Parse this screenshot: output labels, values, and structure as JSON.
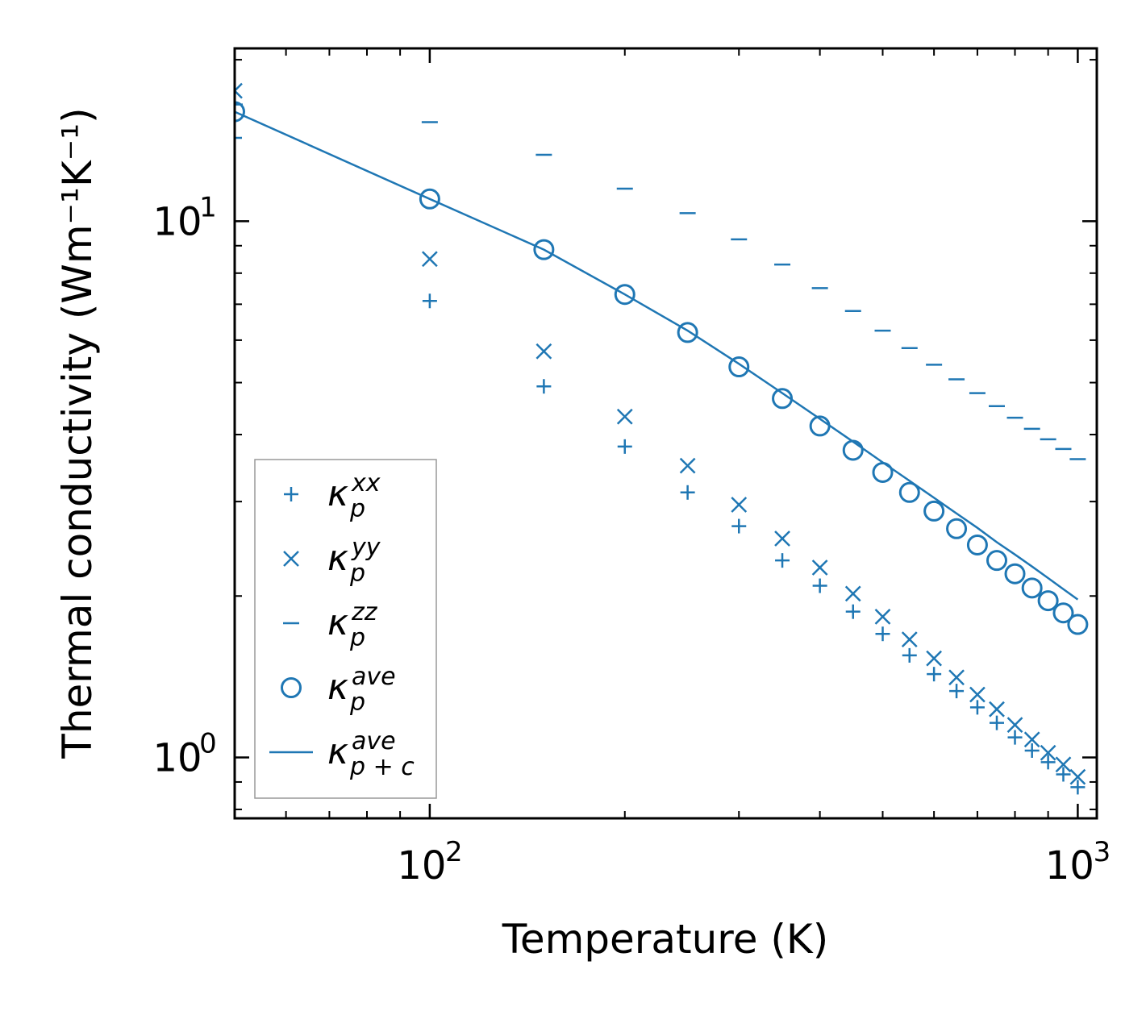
{
  "colors": {
    "series": "#1f77b4",
    "axis": "#000000",
    "legend_frame": "#999999"
  },
  "chart_data": {
    "type": "scatter",
    "xscale": "log",
    "yscale": "log",
    "xlim": [
      50,
      1070
    ],
    "ylim": [
      0.77,
      21
    ],
    "xlabel": "Temperature (K)",
    "ylabel": "Thermal conductivity (Wm⁻¹K⁻¹)",
    "xticks": [
      {
        "value": 100,
        "base": "10",
        "exp": "2"
      },
      {
        "value": 1000,
        "base": "10",
        "exp": "3"
      }
    ],
    "yticks": [
      {
        "value": 1,
        "base": "10",
        "exp": "0"
      },
      {
        "value": 10,
        "base": "10",
        "exp": "1"
      }
    ],
    "x": [
      50,
      100,
      150,
      200,
      250,
      300,
      350,
      400,
      450,
      500,
      550,
      600,
      650,
      700,
      750,
      800,
      850,
      900,
      950,
      1000
    ],
    "series": [
      {
        "name": "kappa_p_xx",
        "marker": "plus",
        "values": [
          14.3,
          7.1,
          4.92,
          3.8,
          3.12,
          2.7,
          2.33,
          2.09,
          1.87,
          1.7,
          1.55,
          1.43,
          1.33,
          1.24,
          1.16,
          1.09,
          1.03,
          0.98,
          0.93,
          0.88
        ]
      },
      {
        "name": "kappa_p_yy",
        "marker": "x",
        "values": [
          17.5,
          8.5,
          5.72,
          4.32,
          3.5,
          2.96,
          2.56,
          2.26,
          2.02,
          1.83,
          1.66,
          1.53,
          1.41,
          1.31,
          1.23,
          1.15,
          1.08,
          1.02,
          0.97,
          0.92
        ]
      },
      {
        "name": "kappa_p_zz",
        "marker": "hline",
        "values": [
          16.5,
          15.3,
          13.3,
          11.5,
          10.35,
          9.25,
          8.3,
          7.5,
          6.8,
          6.25,
          5.8,
          5.4,
          5.07,
          4.78,
          4.52,
          4.3,
          4.1,
          3.92,
          3.76,
          3.6
        ]
      },
      {
        "name": "kappa_p_ave",
        "marker": "circle",
        "values": [
          16.0,
          11.0,
          8.85,
          7.3,
          6.2,
          5.35,
          4.67,
          4.15,
          3.74,
          3.4,
          3.12,
          2.88,
          2.67,
          2.49,
          2.33,
          2.2,
          2.07,
          1.96,
          1.86,
          1.77
        ]
      },
      {
        "name": "kappa_pc_ave",
        "marker": "line",
        "values": [
          16.0,
          11.0,
          8.85,
          7.3,
          6.25,
          5.42,
          4.78,
          4.28,
          3.88,
          3.55,
          3.28,
          3.05,
          2.85,
          2.68,
          2.52,
          2.39,
          2.27,
          2.16,
          2.06,
          1.97
        ]
      }
    ],
    "legend": {
      "position": "lower-left",
      "entries": [
        {
          "symbol": "κ",
          "sub": "p",
          "sup": "xx"
        },
        {
          "symbol": "κ",
          "sub": "p",
          "sup": "yy"
        },
        {
          "symbol": "κ",
          "sub": "p",
          "sup": "zz"
        },
        {
          "symbol": "κ",
          "sub": "p",
          "sup": "ave"
        },
        {
          "symbol": "κ",
          "sub": "p + c",
          "sup": "ave"
        }
      ]
    }
  }
}
